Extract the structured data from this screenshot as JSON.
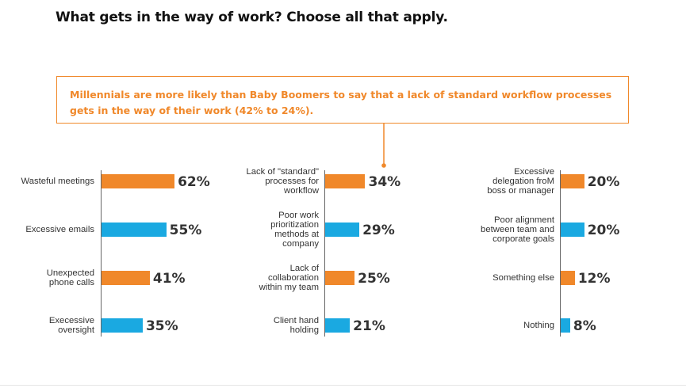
{
  "title": "What gets in the way of work? Choose all that apply.",
  "callout": "Millennials are more likely than Baby Boomers to say that a lack of standard workflow processes\ngets in the way of their work (42% to 24%).",
  "colors": {
    "orange": "#f0882a",
    "blue": "#1aa9e1"
  },
  "chart_data": [
    {
      "type": "bar",
      "orientation": "horizontal",
      "categories": [
        "Wasteful meetings",
        "Excessive emails",
        "Unexpected\nphone calls",
        "Execessive\noversight"
      ],
      "values": [
        62,
        55,
        41,
        35
      ],
      "value_labels": [
        "62%",
        "55%",
        "41%",
        "35%"
      ],
      "bar_colors": [
        "orange",
        "blue",
        "orange",
        "blue"
      ],
      "xlim": [
        0,
        100
      ]
    },
    {
      "type": "bar",
      "orientation": "horizontal",
      "categories": [
        "Lack of \"standard\"\nprocesses for\nworkflow",
        "Poor work\nprioritization\nmethods at\ncompany",
        "Lack of\ncollaboration\nwithin my team",
        "Client hand\nholding"
      ],
      "values": [
        34,
        29,
        25,
        21
      ],
      "value_labels": [
        "34%",
        "29%",
        "25%",
        "21%"
      ],
      "bar_colors": [
        "orange",
        "blue",
        "orange",
        "blue"
      ],
      "xlim": [
        0,
        100
      ]
    },
    {
      "type": "bar",
      "orientation": "horizontal",
      "categories": [
        "Excessive\ndelegation froM\nboss or manager",
        "Poor alignment\nbetween team and\ncorporate goals",
        "Something else",
        "Nothing"
      ],
      "values": [
        20,
        20,
        12,
        8
      ],
      "value_labels": [
        "20%",
        "20%",
        "12%",
        "8%"
      ],
      "bar_colors": [
        "orange",
        "blue",
        "orange",
        "blue"
      ],
      "xlim": [
        0,
        100
      ]
    }
  ]
}
